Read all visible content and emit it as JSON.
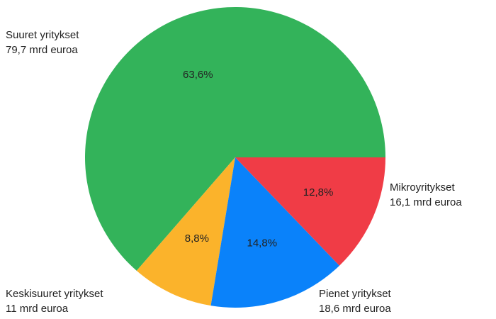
{
  "chart_data": {
    "type": "pie",
    "categories": [
      "Suuret yritykset",
      "Keskisuuret yritykset",
      "Pienet yritykset",
      "Mikroyritykset"
    ],
    "values": [
      63.6,
      8.8,
      14.8,
      12.8
    ],
    "value_labels": [
      "63,6%",
      "8,8%",
      "14,8%",
      "12,8%"
    ],
    "amount_labels": [
      "79,7 mrd euroa",
      "11 mrd euroa",
      "18,6 mrd euroa",
      "16,1 mrd euroa"
    ],
    "colors": [
      "#33b35a",
      "#fbb32b",
      "#0a82fa",
      "#f03c46"
    ]
  }
}
